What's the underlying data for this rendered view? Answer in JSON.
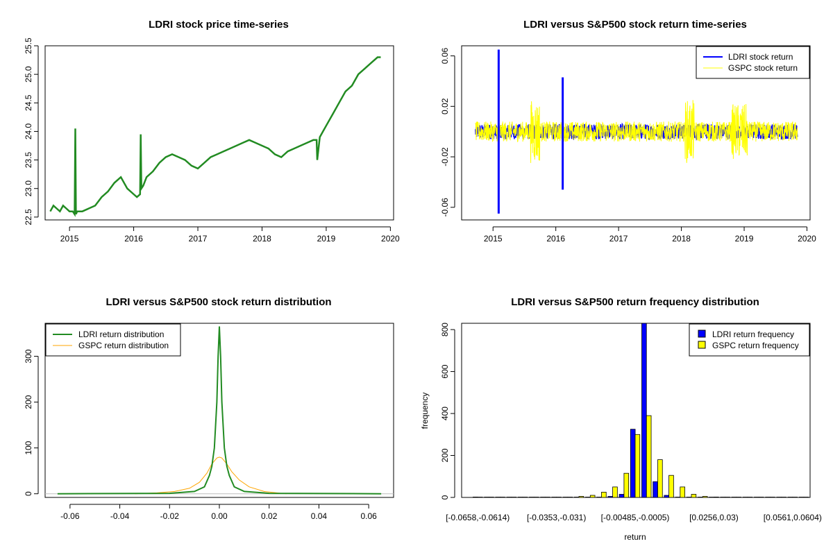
{
  "colors": {
    "ldri_price": "#228B22",
    "ldri_return": "#0000FF",
    "gspc_return": "#FFFF00",
    "ldri_density": "#228B22",
    "gspc_density": "#FFA500",
    "ldri_freq": "#0000FF",
    "gspc_freq": "#FFFF00"
  },
  "chart_data": [
    {
      "id": "price",
      "type": "line",
      "title": "LDRI stock price time-series",
      "xlabel": "",
      "ylabel": "",
      "xlim": [
        2014.62,
        2020.05
      ],
      "ylim": [
        22.45,
        25.5
      ],
      "xticks": [
        2015,
        2016,
        2017,
        2018,
        2019,
        2020
      ],
      "yticks": [
        22.5,
        23.0,
        23.5,
        24.0,
        24.5,
        25.0,
        25.5
      ],
      "ytick_labels": [
        "22.5",
        "23.0",
        "23.5",
        "24.0",
        "24.5",
        "25.0",
        "25.5"
      ],
      "series": [
        {
          "x": [
            2014.7,
            2014.75,
            2014.8,
            2014.85,
            2014.9,
            2014.95,
            2015.0,
            2015.05,
            2015.08,
            2015.09,
            2015.1,
            2015.12,
            2015.2,
            2015.3,
            2015.4,
            2015.5,
            2015.6,
            2015.7,
            2015.8,
            2015.9,
            2016.0,
            2016.05,
            2016.1,
            2016.11,
            2016.12,
            2016.15,
            2016.2,
            2016.3,
            2016.4,
            2016.5,
            2016.6,
            2016.7,
            2016.8,
            2016.9,
            2017.0,
            2017.1,
            2017.2,
            2017.3,
            2017.4,
            2017.5,
            2017.6,
            2017.7,
            2017.8,
            2017.9,
            2018.0,
            2018.1,
            2018.2,
            2018.3,
            2018.4,
            2018.5,
            2018.6,
            2018.7,
            2018.8,
            2018.85,
            2018.86,
            2018.9,
            2018.95,
            2019.0,
            2019.1,
            2019.2,
            2019.3,
            2019.4,
            2019.5,
            2019.6,
            2019.7,
            2019.8,
            2019.85
          ],
          "values": [
            22.6,
            22.7,
            22.65,
            22.6,
            22.7,
            22.65,
            22.6,
            22.6,
            22.55,
            24.05,
            22.55,
            22.6,
            22.6,
            22.65,
            22.7,
            22.85,
            22.95,
            23.1,
            23.2,
            23.0,
            22.9,
            22.85,
            22.9,
            23.95,
            23.0,
            23.05,
            23.2,
            23.3,
            23.45,
            23.55,
            23.6,
            23.55,
            23.5,
            23.4,
            23.35,
            23.45,
            23.55,
            23.6,
            23.65,
            23.7,
            23.75,
            23.8,
            23.85,
            23.8,
            23.75,
            23.7,
            23.6,
            23.55,
            23.65,
            23.7,
            23.75,
            23.8,
            23.85,
            23.85,
            23.5,
            23.9,
            24.0,
            24.1,
            24.3,
            24.5,
            24.7,
            24.8,
            25.0,
            25.1,
            25.2,
            25.3,
            25.3
          ]
        }
      ]
    },
    {
      "id": "returns",
      "type": "line",
      "title": "LDRI versus S&P500 stock return time-series",
      "xlabel": "",
      "ylabel": "",
      "xlim": [
        2014.5,
        2020.05
      ],
      "ylim": [
        -0.07,
        0.068
      ],
      "xticks": [
        2015,
        2016,
        2017,
        2018,
        2019,
        2020
      ],
      "yticks": [
        -0.06,
        -0.02,
        0.02,
        0.06
      ],
      "ytick_labels": [
        "-0.06",
        "-0.02",
        "0.02",
        "0.06"
      ],
      "legend": [
        "LDRI stock return",
        "GSPC stock return"
      ],
      "spikes": [
        {
          "series": "LDRI stock return",
          "x": 2015.09,
          "values": [
            0.065,
            -0.065
          ]
        },
        {
          "series": "LDRI stock return",
          "x": 2016.11,
          "values": [
            0.043,
            -0.046
          ]
        }
      ]
    },
    {
      "id": "density",
      "type": "line",
      "title": "LDRI versus S&P500 stock return distribution",
      "xlabel": "",
      "ylabel": "",
      "xlim": [
        -0.07,
        0.07
      ],
      "ylim": [
        -8,
        372
      ],
      "xticks": [
        -0.06,
        -0.04,
        -0.02,
        0.0,
        0.02,
        0.04,
        0.06
      ],
      "xtick_labels": [
        "-0.06",
        "-0.04",
        "-0.02",
        "0.00",
        "0.02",
        "0.04",
        "0.06"
      ],
      "yticks": [
        0,
        100,
        200,
        300
      ],
      "legend": [
        "LDRI return distribution",
        "GSPC return distribution"
      ],
      "series": [
        {
          "name": "LDRI return distribution",
          "x": [
            -0.065,
            -0.02,
            -0.01,
            -0.006,
            -0.004,
            -0.003,
            -0.002,
            -0.001,
            -0.0005,
            0.0,
            0.0005,
            0.001,
            0.002,
            0.003,
            0.004,
            0.006,
            0.01,
            0.02,
            0.065
          ],
          "values": [
            0,
            1,
            5,
            15,
            40,
            60,
            100,
            200,
            300,
            365,
            300,
            200,
            100,
            60,
            40,
            15,
            5,
            1,
            0
          ]
        },
        {
          "name": "GSPC return distribution",
          "x": [
            -0.034,
            -0.025,
            -0.018,
            -0.012,
            -0.008,
            -0.005,
            -0.003,
            -0.001,
            0.0,
            0.001,
            0.003,
            0.005,
            0.008,
            0.012,
            0.018,
            0.025,
            0.027
          ],
          "values": [
            0,
            2,
            5,
            12,
            25,
            45,
            65,
            78,
            80,
            78,
            65,
            48,
            30,
            15,
            5,
            1,
            0
          ]
        }
      ]
    },
    {
      "id": "freq",
      "type": "bar",
      "title": "LDRI versus S&P500 return frequency distribution",
      "xlabel": "return",
      "ylabel": "frequency",
      "ylim": [
        0,
        830
      ],
      "yticks": [
        0,
        200,
        400,
        600,
        800
      ],
      "legend": [
        "LDRI return frequency",
        "GSPC return frequency"
      ],
      "category_labels": [
        {
          "index": 0,
          "label": "[-0.0658,-0.0614)"
        },
        {
          "index": 7,
          "label": "[-0.0353,-0.031)"
        },
        {
          "index": 14,
          "label": "[-0.00485,-0.0005)"
        },
        {
          "index": 21,
          "label": "[0.0256,0.03)"
        },
        {
          "index": 28,
          "label": "[0.0561,0.0604)"
        }
      ],
      "series": [
        {
          "name": "LDRI return frequency",
          "values": [
            2,
            1,
            0,
            0,
            0,
            0,
            1,
            0,
            0,
            0,
            0,
            0,
            5,
            15,
            325,
            830,
            75,
            10,
            0,
            0,
            0,
            0,
            0,
            0,
            0,
            0,
            0,
            0,
            0,
            1
          ]
        },
        {
          "name": "GSPC return frequency",
          "values": [
            0,
            0,
            0,
            0,
            0,
            0,
            0,
            0,
            1,
            5,
            10,
            25,
            50,
            115,
            300,
            390,
            180,
            105,
            50,
            15,
            5,
            2,
            1,
            0,
            0,
            0,
            0,
            0,
            0,
            0
          ]
        }
      ]
    }
  ]
}
